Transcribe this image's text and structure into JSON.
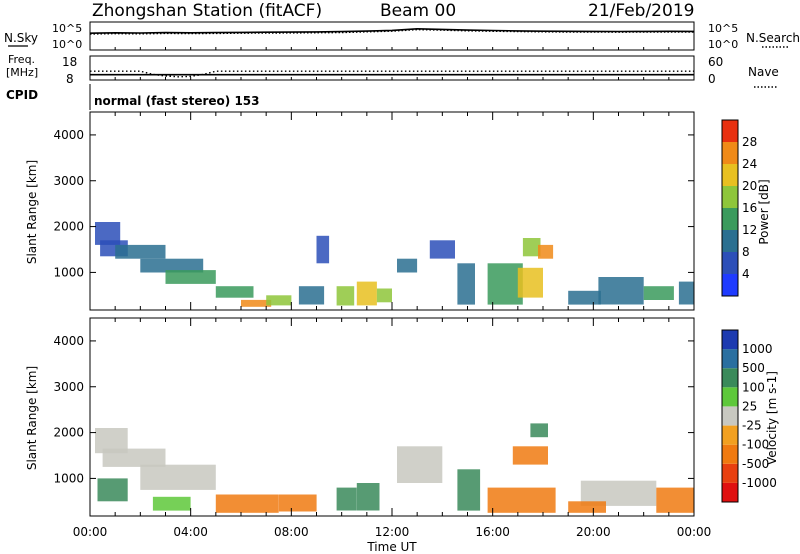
{
  "header": {
    "title": "Zhongshan Station (fitACF)",
    "beam": "Beam 00",
    "date": "21/Feb/2019",
    "mode": "normal (fast stereo) 153"
  },
  "side_labels": {
    "nsky": "N.Sky",
    "nsearch": "N.Search",
    "freq_line1": "Freq.",
    "freq_line2": "[MHz]",
    "nave": "Nave",
    "cpid": "CPID"
  },
  "chart_data": [
    {
      "type": "line",
      "name": "noise-panel",
      "left_axis": {
        "label": "N.Sky",
        "ticks": [
          "10^5",
          "10^0"
        ],
        "scale": "log",
        "ylim": [
          1,
          100000
        ]
      },
      "right_axis": {
        "label": "N.Search",
        "ticks": [
          "10^5",
          "10^0"
        ],
        "scale": "log"
      },
      "xlim": [
        "00:00",
        "24:00"
      ],
      "series": [
        {
          "name": "N.Sky",
          "style": "solid",
          "x": [
            0,
            1,
            2,
            3,
            4,
            5,
            6,
            7,
            8,
            9,
            10,
            11,
            12,
            13,
            14,
            15,
            16,
            17,
            18,
            19,
            20,
            21,
            22,
            23,
            24
          ],
          "y": [
            1000,
            1200,
            1100,
            1300,
            1200,
            1300,
            1400,
            1500,
            1600,
            1700,
            1900,
            2400,
            3200,
            6000,
            4800,
            3600,
            3000,
            2600,
            2300,
            2200,
            2100,
            2000,
            2100,
            2200,
            2100
          ]
        },
        {
          "name": "N.Search",
          "style": "dotted",
          "x": [
            0,
            1,
            2,
            3,
            4,
            5,
            6,
            7,
            8,
            9,
            10,
            11,
            12,
            13,
            14,
            15,
            16,
            17,
            18,
            19,
            20,
            21,
            22,
            23,
            24
          ],
          "y": [
            700,
            800,
            750,
            900,
            850,
            900,
            1000,
            1050,
            1100,
            1200,
            1300,
            1700,
            2300,
            4200,
            3400,
            2600,
            2200,
            1900,
            1700,
            1600,
            1550,
            1500,
            1550,
            1600,
            1550
          ]
        }
      ]
    },
    {
      "type": "line",
      "name": "freq-nave-panel",
      "left_axis": {
        "label": "Freq. [MHz]",
        "ticks": [
          "18",
          "8"
        ],
        "ylim": [
          8,
          18
        ]
      },
      "right_axis": {
        "label": "Nave",
        "ticks": [
          "60",
          "0"
        ],
        "ylim": [
          0,
          60
        ]
      },
      "xlim": [
        "00:00",
        "24:00"
      ],
      "series": [
        {
          "name": "Freq.",
          "style": "solid",
          "x": [
            0,
            24
          ],
          "y": [
            10.2,
            10.2
          ]
        },
        {
          "name": "Nave",
          "style": "dotted",
          "x": [
            0,
            1,
            2,
            2.5,
            3,
            3.5,
            4,
            4.5,
            5,
            6,
            8,
            10,
            12,
            14,
            16,
            18,
            20,
            22,
            24
          ],
          "y": [
            22,
            22,
            22,
            14,
            10,
            8,
            9,
            14,
            22,
            22,
            22,
            22,
            22,
            22,
            22,
            22,
            22,
            22,
            22
          ]
        }
      ]
    },
    {
      "type": "heatmap",
      "name": "power-panel",
      "ylabel": "Slant Range [km]",
      "xlim": [
        "00:00",
        "24:00"
      ],
      "ylim": [
        180,
        4500
      ],
      "yticks": [
        "1000",
        "2000",
        "3000",
        "4000"
      ],
      "colorbar": {
        "label": "Power [dB]",
        "ticks": [
          "4",
          "8",
          "12",
          "16",
          "20",
          "24",
          "28"
        ],
        "range": [
          0,
          30
        ]
      },
      "patches": [
        {
          "t": [
            0.2,
            1.2
          ],
          "r": [
            1600,
            2100
          ],
          "value": 5
        },
        {
          "t": [
            0.4,
            1.5
          ],
          "r": [
            1350,
            1700
          ],
          "value": 7
        },
        {
          "t": [
            1.0,
            3.0
          ],
          "r": [
            1300,
            1600
          ],
          "value": 8
        },
        {
          "t": [
            2.0,
            4.5
          ],
          "r": [
            1000,
            1300
          ],
          "value": 10
        },
        {
          "t": [
            3.0,
            5.0
          ],
          "r": [
            750,
            1050
          ],
          "value": 13
        },
        {
          "t": [
            5.0,
            6.5
          ],
          "r": [
            450,
            700
          ],
          "value": 15
        },
        {
          "t": [
            6.0,
            7.2
          ],
          "r": [
            250,
            400
          ],
          "value": 27
        },
        {
          "t": [
            7.0,
            8.0
          ],
          "r": [
            280,
            500
          ],
          "value": 17
        },
        {
          "t": [
            8.3,
            9.3
          ],
          "r": [
            300,
            700
          ],
          "value": 8
        },
        {
          "t": [
            9.0,
            9.5
          ],
          "r": [
            1200,
            1800
          ],
          "value": 6
        },
        {
          "t": [
            9.8,
            10.5
          ],
          "r": [
            280,
            700
          ],
          "value": 19
        },
        {
          "t": [
            10.6,
            11.4
          ],
          "r": [
            280,
            800
          ],
          "value": 21
        },
        {
          "t": [
            11.4,
            12.0
          ],
          "r": [
            350,
            650
          ],
          "value": 16
        },
        {
          "t": [
            12.2,
            13.0
          ],
          "r": [
            1000,
            1300
          ],
          "value": 9
        },
        {
          "t": [
            13.5,
            14.5
          ],
          "r": [
            1300,
            1700
          ],
          "value": 7
        },
        {
          "t": [
            14.6,
            15.3
          ],
          "r": [
            300,
            1200
          ],
          "value": 10
        },
        {
          "t": [
            15.8,
            17.2
          ],
          "r": [
            300,
            1200
          ],
          "value": 14
        },
        {
          "t": [
            17.0,
            18.0
          ],
          "r": [
            450,
            1100
          ],
          "value": 22
        },
        {
          "t": [
            17.2,
            17.9
          ],
          "r": [
            1350,
            1750
          ],
          "value": 19
        },
        {
          "t": [
            17.8,
            18.4
          ],
          "r": [
            1300,
            1600
          ],
          "value": 24
        },
        {
          "t": [
            19.0,
            20.3
          ],
          "r": [
            300,
            600
          ],
          "value": 11
        },
        {
          "t": [
            20.2,
            22.0
          ],
          "r": [
            300,
            900
          ],
          "value": 8
        },
        {
          "t": [
            22.0,
            23.2
          ],
          "r": [
            400,
            700
          ],
          "value": 13
        },
        {
          "t": [
            23.4,
            24.0
          ],
          "r": [
            300,
            800
          ],
          "value": 9
        }
      ]
    },
    {
      "type": "heatmap",
      "name": "velocity-panel",
      "ylabel": "Slant Range [km]",
      "xlim": [
        "00:00",
        "24:00"
      ],
      "ylim": [
        180,
        4500
      ],
      "yticks": [
        "1000",
        "2000",
        "3000",
        "4000"
      ],
      "colorbar": {
        "label": "Velocity [m s-1]",
        "ticks": [
          "1000",
          "500",
          "100",
          "25",
          "-25",
          "-100",
          "-500",
          "-1000"
        ]
      },
      "patches": [
        {
          "t": [
            0.2,
            1.5
          ],
          "r": [
            1550,
            2100
          ],
          "value": 0
        },
        {
          "t": [
            0.5,
            3.0
          ],
          "r": [
            1250,
            1650
          ],
          "value": 0
        },
        {
          "t": [
            0.3,
            1.5
          ],
          "r": [
            500,
            1000
          ],
          "value": 200
        },
        {
          "t": [
            2.0,
            5.0
          ],
          "r": [
            750,
            1300
          ],
          "value": 0
        },
        {
          "t": [
            2.5,
            4.0
          ],
          "r": [
            300,
            600
          ],
          "value": 80
        },
        {
          "t": [
            5.0,
            7.5
          ],
          "r": [
            250,
            650
          ],
          "value": -200
        },
        {
          "t": [
            7.5,
            9.0
          ],
          "r": [
            280,
            650
          ],
          "value": -300
        },
        {
          "t": [
            9.8,
            10.6
          ],
          "r": [
            300,
            800
          ],
          "value": 300
        },
        {
          "t": [
            10.6,
            11.5
          ],
          "r": [
            300,
            900
          ],
          "value": 150
        },
        {
          "t": [
            12.2,
            14.0
          ],
          "r": [
            900,
            1700
          ],
          "value": 0
        },
        {
          "t": [
            14.6,
            15.5
          ],
          "r": [
            300,
            1200
          ],
          "value": 200
        },
        {
          "t": [
            15.8,
            18.5
          ],
          "r": [
            250,
            800
          ],
          "value": -300
        },
        {
          "t": [
            16.8,
            18.2
          ],
          "r": [
            1300,
            1700
          ],
          "value": -300
        },
        {
          "t": [
            17.5,
            18.2
          ],
          "r": [
            1900,
            2200
          ],
          "value": 100
        },
        {
          "t": [
            19.5,
            22.5
          ],
          "r": [
            400,
            950
          ],
          "value": 0
        },
        {
          "t": [
            19.0,
            20.5
          ],
          "r": [
            250,
            500
          ],
          "value": -200
        },
        {
          "t": [
            22.5,
            24.0
          ],
          "r": [
            250,
            800
          ],
          "value": -300
        }
      ]
    }
  ],
  "xaxis": {
    "ticks": [
      "00:00",
      "04:00",
      "08:00",
      "12:00",
      "16:00",
      "20:00",
      "00:00"
    ],
    "label": "Time UT"
  }
}
